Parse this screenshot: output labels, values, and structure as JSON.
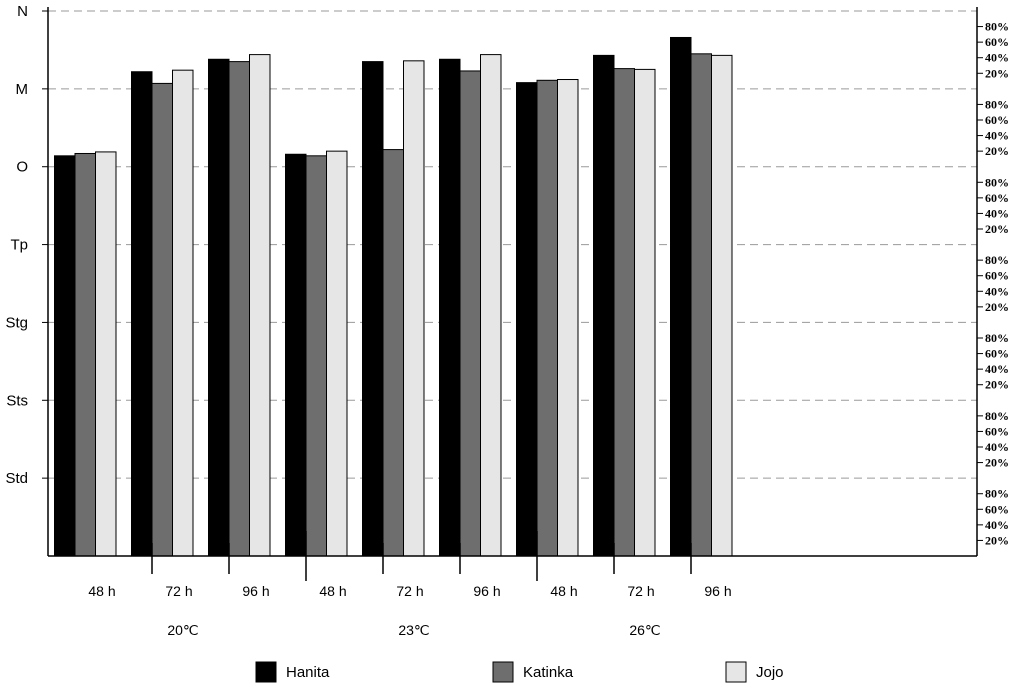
{
  "chart_data": {
    "type": "bar",
    "stages": [
      "N",
      "M",
      "O",
      "Tp",
      "Stg",
      "Sts",
      "Std"
    ],
    "stage_percent_ticks": [
      "80%",
      "60%",
      "40%",
      "20%"
    ],
    "groups": [
      {
        "temperature": "20℃",
        "times": [
          "48 h",
          "72 h",
          "96 h"
        ]
      },
      {
        "temperature": "23℃",
        "times": [
          "48 h",
          "72 h",
          "96 h"
        ]
      },
      {
        "temperature": "26℃",
        "times": [
          "48 h",
          "72 h",
          "96 h"
        ]
      }
    ],
    "ylim": [
      0,
      7
    ],
    "series": [
      {
        "name": "Hanita",
        "color": "#000000",
        "values": [
          5.14,
          6.22,
          6.38,
          5.16,
          6.35,
          6.38,
          6.08,
          6.43,
          6.66
        ]
      },
      {
        "name": "Katinka",
        "color": "#6e6e6e",
        "values": [
          5.17,
          6.07,
          6.35,
          5.14,
          5.22,
          6.23,
          6.11,
          6.26,
          6.45
        ]
      },
      {
        "name": "Jojo",
        "color": "#e6e6e6",
        "values": [
          5.19,
          6.24,
          6.44,
          5.2,
          6.36,
          6.44,
          6.12,
          6.25,
          6.43
        ]
      }
    ],
    "grid": true,
    "legend_position": "bottom"
  }
}
